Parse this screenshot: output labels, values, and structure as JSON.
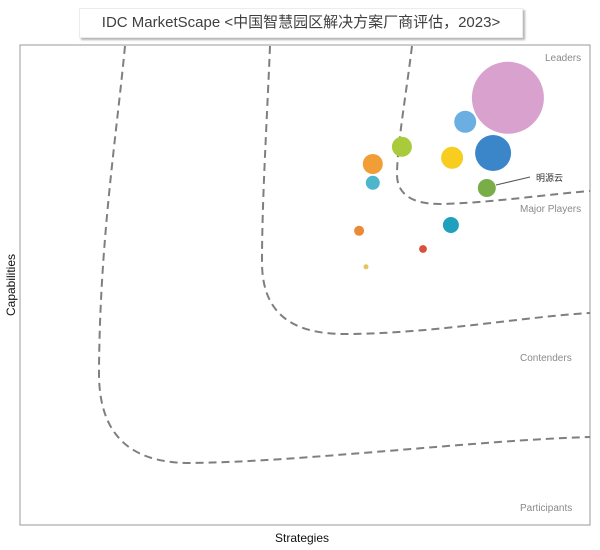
{
  "chart_data": {
    "type": "scatter",
    "title": "IDC MarketScape <中国智慧园区解决方案厂商评估，2023>",
    "xlabel": "Strategies",
    "ylabel": "Capabilities",
    "xlim": [
      0,
      100
    ],
    "ylim": [
      0,
      100
    ],
    "grid": false,
    "legend": "none",
    "zones": [
      "Leaders",
      "Major Players",
      "Contenders",
      "Participants"
    ],
    "points": [
      {
        "x": 85.6,
        "y": 89.0,
        "size": 100,
        "color": "#d9a1cd"
      },
      {
        "x": 83.0,
        "y": 77.5,
        "size": 25,
        "color": "#3a86c8"
      },
      {
        "x": 78.1,
        "y": 84.0,
        "size": 9.3,
        "color": "#6aaee2"
      },
      {
        "x": 75.8,
        "y": 76.5,
        "size": 9.3,
        "color": "#f7cd1f"
      },
      {
        "x": 67.0,
        "y": 78.8,
        "size": 7.7,
        "color": "#a9cb3b"
      },
      {
        "x": 61.9,
        "y": 75.2,
        "size": 7.7,
        "color": "#f29e36"
      },
      {
        "x": 61.9,
        "y": 71.3,
        "size": 3.8,
        "color": "#4db6cc"
      },
      {
        "x": 81.9,
        "y": 70.2,
        "size": 6.3,
        "color": "#78ad48",
        "label": "明源云"
      },
      {
        "x": 75.6,
        "y": 62.5,
        "size": 4.9,
        "color": "#1fa0bc"
      },
      {
        "x": 59.5,
        "y": 61.3,
        "size": 1.9,
        "color": "#ea8a36"
      },
      {
        "x": 70.7,
        "y": 57.5,
        "size": 1.2,
        "color": "#dc4f3c"
      },
      {
        "x": 60.7,
        "y": 53.8,
        "size": 0.5,
        "color": "#e9c25a"
      }
    ]
  }
}
